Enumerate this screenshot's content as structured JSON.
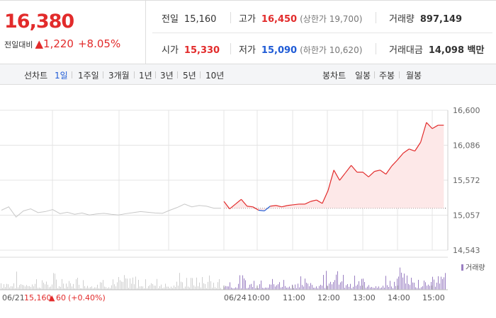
{
  "quote": {
    "current_price": "16,380",
    "change_label": "전일대비",
    "change_arrow": "▲",
    "change_value": "1,220",
    "change_percent": "+8.05%"
  },
  "stats": {
    "prev_close": {
      "label": "전일",
      "value": "15,160"
    },
    "high": {
      "label": "고가",
      "value": "16,450",
      "sub": "(상한가 19,700)"
    },
    "volume": {
      "label": "거래량",
      "value": "897,149"
    },
    "open": {
      "label": "시가",
      "value": "15,330"
    },
    "low": {
      "label": "저가",
      "value": "15,090",
      "sub": "(하한가 10,620)"
    },
    "amount": {
      "label": "거래대금",
      "value": "14,098 백만"
    }
  },
  "period_tabs": {
    "line_label": "선차트",
    "line": [
      "1일",
      "1주일",
      "3개월",
      "1년",
      "3년",
      "5년",
      "10년"
    ],
    "line_active": 0,
    "candle_label": "봉차트",
    "candle": [
      "일봉",
      "주봉",
      "월봉"
    ]
  },
  "chart": {
    "y_ticks": [
      "16,600",
      "16,086",
      "15,572",
      "15,057",
      "14,543"
    ],
    "x_labels": [
      "06/24",
      "10:00",
      "11:00",
      "12:00",
      "13:00",
      "14:00",
      "15:00"
    ],
    "prev_day_label": "06/21",
    "prev_day_close": "15,160",
    "prev_day_arrow": "▲",
    "prev_day_change": "60",
    "prev_day_pct": "(+0.40%)",
    "volume_legend": "거래량",
    "colors": {
      "up": "#e22b2b",
      "down": "#1f5bd6",
      "prev_line": "#c8c8c8",
      "fill": "#fde8e8",
      "vol_today": "#9a7fc2",
      "vol_prev": "#cfcfcf",
      "grid": "#e4e4e4"
    }
  },
  "chart_data": {
    "type": "line",
    "series": [
      {
        "name": "06/21",
        "x": [
          0,
          2,
          4,
          6,
          8,
          10,
          12,
          14,
          16,
          18,
          20,
          22,
          24,
          26,
          28,
          30,
          32,
          34,
          36,
          38,
          40,
          42,
          44,
          46,
          48,
          50,
          52,
          54,
          56,
          58,
          60
        ],
        "y": [
          15130,
          15180,
          15030,
          15120,
          15150,
          15095,
          15110,
          15140,
          15080,
          15100,
          15070,
          15090,
          15060,
          15075,
          15085,
          15070,
          15060,
          15080,
          15095,
          15110,
          15100,
          15090,
          15085,
          15130,
          15170,
          15220,
          15180,
          15200,
          15190,
          15160,
          15160
        ]
      },
      {
        "name": "06/24",
        "x": [
          "09:00",
          "09:10",
          "09:20",
          "09:30",
          "09:40",
          "09:50",
          "10:00",
          "10:10",
          "10:20",
          "10:30",
          "10:40",
          "10:50",
          "11:00",
          "11:10",
          "11:20",
          "11:30",
          "11:40",
          "11:50",
          "12:00",
          "12:10",
          "12:20",
          "12:30",
          "12:40",
          "12:50",
          "13:00",
          "13:10",
          "13:20",
          "13:30",
          "13:40",
          "13:50",
          "14:00",
          "14:10",
          "14:20",
          "14:30",
          "14:40",
          "14:50",
          "15:00",
          "15:10",
          "15:20"
        ],
        "y": [
          15260,
          15150,
          15220,
          15290,
          15190,
          15180,
          15130,
          15120,
          15190,
          15200,
          15180,
          15200,
          15210,
          15220,
          15220,
          15260,
          15280,
          15230,
          15420,
          15720,
          15570,
          15680,
          15790,
          15690,
          15690,
          15620,
          15700,
          15720,
          15660,
          15780,
          15870,
          15970,
          16030,
          16000,
          16130,
          16420,
          16330,
          16380,
          16380
        ]
      }
    ],
    "y_ticks": [
      16600,
      16086,
      15572,
      15057,
      14543
    ],
    "ylim": [
      14543,
      16600
    ],
    "reference_line": 15160,
    "x_tick_labels": [
      "06/24",
      "10:00",
      "11:00",
      "12:00",
      "13:00",
      "14:00",
      "15:00"
    ]
  }
}
